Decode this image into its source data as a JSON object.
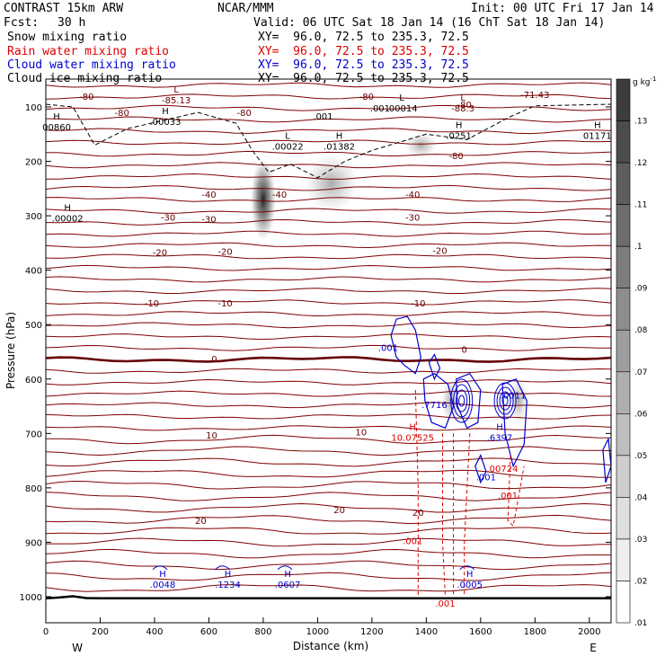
{
  "header": {
    "model": "CONTRAST 15km ARW",
    "center": "NCAR/MMM",
    "init": "Init: 00 UTC Fri 17 Jan 14",
    "fcst_label": "Fcst:",
    "fcst_value": "30 h",
    "valid": "Valid: 06 UTC Sat 18 Jan 14 (16 ChT Sat 18 Jan 14)"
  },
  "fields": [
    {
      "name": "Snow mixing ratio",
      "xy": "XY=  96.0, 72.5 to 235.3, 72.5",
      "color": "#000000"
    },
    {
      "name": "Rain water mixing ratio",
      "xy": "XY=  96.0, 72.5 to 235.3, 72.5",
      "color": "#dd0000"
    },
    {
      "name": "Cloud water mixing ratio",
      "xy": "XY=  96.0, 72.5 to 235.3, 72.5",
      "color": "#0000cc"
    },
    {
      "name": "Cloud ice mixing ratio",
      "xy": "XY=  96.0, 72.5 to 235.3, 72.5",
      "color": "#000000"
    }
  ],
  "colorbar": {
    "unit": "g kg",
    "unit_exp": "-1",
    "levels": [
      ".13",
      ".12",
      ".11",
      ".1",
      ".09",
      ".08",
      ".07",
      ".06",
      ".05",
      ".04",
      ".03",
      ".02",
      ".01"
    ]
  },
  "chart_data": {
    "type": "cross-section",
    "title": "CONTRAST 15km ARW cross section",
    "xlabel": "Distance (km)",
    "ylabel": "Pressure (hPa)",
    "xlim": [
      0,
      2080
    ],
    "ylim": [
      1050,
      50
    ],
    "x_ticks": [
      0,
      200,
      400,
      600,
      800,
      1000,
      1200,
      1400,
      1600,
      1800,
      2000
    ],
    "y_ticks": [
      100,
      200,
      300,
      400,
      500,
      600,
      700,
      800,
      900,
      1000
    ],
    "x_end_labels": {
      "left": "W",
      "right": "E"
    },
    "temperature_contour_labels": [
      {
        "text": "-80",
        "x": 150,
        "p": 80
      },
      {
        "text": "-80",
        "x": 280,
        "p": 110
      },
      {
        "text": "-80",
        "x": 730,
        "p": 110
      },
      {
        "text": "-80",
        "x": 1180,
        "p": 80
      },
      {
        "text": "-80",
        "x": 1540,
        "p": 95
      },
      {
        "text": "-80",
        "x": 1510,
        "p": 189
      },
      {
        "text": "-40",
        "x": 600,
        "p": 260
      },
      {
        "text": "-40",
        "x": 860,
        "p": 260
      },
      {
        "text": "-40",
        "x": 1350,
        "p": 260
      },
      {
        "text": "-30",
        "x": 450,
        "p": 302
      },
      {
        "text": "-30",
        "x": 600,
        "p": 306
      },
      {
        "text": "-30",
        "x": 1350,
        "p": 302
      },
      {
        "text": "-20",
        "x": 420,
        "p": 367
      },
      {
        "text": "-20",
        "x": 660,
        "p": 365
      },
      {
        "text": "-20",
        "x": 1450,
        "p": 363
      },
      {
        "text": "-10",
        "x": 390,
        "p": 460
      },
      {
        "text": "-10",
        "x": 660,
        "p": 460
      },
      {
        "text": "-10",
        "x": 1370,
        "p": 460
      },
      {
        "text": "0",
        "x": 620,
        "p": 562
      },
      {
        "text": "0",
        "x": 1540,
        "p": 545
      },
      {
        "text": "10",
        "x": 610,
        "p": 703
      },
      {
        "text": "10",
        "x": 1160,
        "p": 697
      },
      {
        "text": "20",
        "x": 570,
        "p": 860
      },
      {
        "text": "20",
        "x": 1080,
        "p": 840
      },
      {
        "text": "20",
        "x": 1370,
        "p": 845
      }
    ],
    "maxima_labels": [
      {
        "mark": "L",
        "value": "-85.13",
        "x": 460,
        "p": 85,
        "color": "#660000"
      },
      {
        "mark": "H",
        "value": ".00033",
        "x": 420,
        "p": 125,
        "color": "#000000"
      },
      {
        "mark": "H",
        "value": "00860",
        "x": 20,
        "p": 135,
        "color": "#000000"
      },
      {
        "mark": "L",
        "value": ".00022",
        "x": 870,
        "p": 170,
        "color": "#000000"
      },
      {
        "mark": "H",
        "value": ".01382",
        "x": 1060,
        "p": 170,
        "color": "#000000"
      },
      {
        "mark": "",
        "value": ".001",
        "x": 1000,
        "p": 115,
        "color": "#000000"
      },
      {
        "mark": "",
        "value": ".001",
        "x": 1210,
        "p": 100,
        "color": "#000000"
      },
      {
        "mark": "L",
        "value": ".00014",
        "x": 1290,
        "p": 100,
        "color": "#000000"
      },
      {
        "mark": "L",
        "value": "-88.3",
        "x": 1515,
        "p": 100,
        "color": "#660000"
      },
      {
        "mark": "",
        "value": "-71.43",
        "x": 1780,
        "p": 75,
        "color": "#660000"
      },
      {
        "mark": "H",
        "value": ".0251",
        "x": 1500,
        "p": 150,
        "color": "#000000"
      },
      {
        "mark": "H",
        "value": "01171",
        "x": 2010,
        "p": 150,
        "color": "#000000"
      },
      {
        "mark": "H",
        "value": ".00002",
        "x": 60,
        "p": 302,
        "color": "#000000"
      },
      {
        "mark": "",
        "value": ".001",
        "x": 1240,
        "p": 540,
        "color": "#0000cc"
      },
      {
        "mark": "",
        "value": ".7716",
        "x": 1410,
        "p": 645,
        "color": "#0000cc"
      },
      {
        "mark": "H",
        "value": "10.07525",
        "x": 1330,
        "p": 705,
        "color": "#dd0000"
      },
      {
        "mark": "H",
        "value": ".6397",
        "x": 1650,
        "p": 705,
        "color": "#0000cc"
      },
      {
        "mark": "",
        "value": ".0011",
        "x": 1700,
        "p": 628,
        "color": "#0000cc"
      },
      {
        "mark": "",
        "value": ".00724",
        "x": 1660,
        "p": 762,
        "color": "#dd0000"
      },
      {
        "mark": "",
        "value": ".001",
        "x": 1600,
        "p": 778,
        "color": "#0000cc"
      },
      {
        "mark": "",
        "value": ".001",
        "x": 1680,
        "p": 812,
        "color": "#dd0000"
      },
      {
        "mark": "",
        "value": ".001",
        "x": 1330,
        "p": 895,
        "color": "#dd0000"
      },
      {
        "mark": "",
        "value": ".001",
        "x": 1450,
        "p": 1010,
        "color": "#dd0000"
      },
      {
        "mark": "H",
        "value": ".0048",
        "x": 410,
        "p": 975,
        "color": "#0000cc"
      },
      {
        "mark": "H",
        "value": ".1234",
        "x": 650,
        "p": 975,
        "color": "#0000cc"
      },
      {
        "mark": "H",
        "value": ".0607",
        "x": 870,
        "p": 975,
        "color": "#0000cc"
      },
      {
        "mark": "H",
        "value": ".0005",
        "x": 1540,
        "p": 975,
        "color": "#0000cc"
      }
    ]
  }
}
